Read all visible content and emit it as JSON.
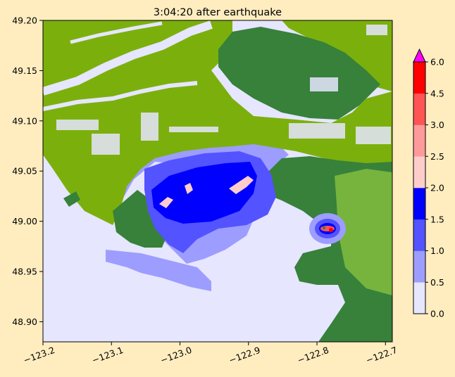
{
  "chart_data": {
    "type": "heatmap",
    "title": "3:04:20 after earthquake",
    "xlabel": "",
    "ylabel": "",
    "xlim": [
      -123.2,
      -122.69
    ],
    "ylim": [
      48.88,
      49.2
    ],
    "x_ticks": [
      -123.2,
      -123.1,
      -123.0,
      -122.9,
      -122.8,
      -122.7
    ],
    "x_tick_labels": [
      "−123.2",
      "−123.1",
      "−123.0",
      "−122.9",
      "−122.8",
      "−122.7"
    ],
    "y_ticks": [
      48.9,
      48.95,
      49.0,
      49.05,
      49.1,
      49.15,
      49.2
    ],
    "y_tick_labels": [
      "48.90",
      "48.95",
      "49.00",
      "49.05",
      "49.10",
      "49.15",
      "49.20"
    ],
    "grid": false,
    "colorbar": {
      "position": "right",
      "extend": "max",
      "levels": [
        0.0,
        0.5,
        1.0,
        1.5,
        2.0,
        2.5,
        3.0,
        4.5,
        6.0
      ],
      "tick_labels": [
        "0.0",
        "0.5",
        "1.0",
        "1.5",
        "2.0",
        "2.5",
        "3.0",
        "4.5",
        "6.0"
      ],
      "colors": [
        "#E6E6FF",
        "#9D9DFF",
        "#5353FF",
        "#0000FF",
        "#FFCCCC",
        "#FF9A9A",
        "#FF5454",
        "#FF0000"
      ],
      "over_color": "#FF00FF"
    },
    "map_colors": {
      "water": "#E6E6FF",
      "lowland": "#7BB00C",
      "upland": "#37813A",
      "highland": "#8CC63F"
    }
  }
}
